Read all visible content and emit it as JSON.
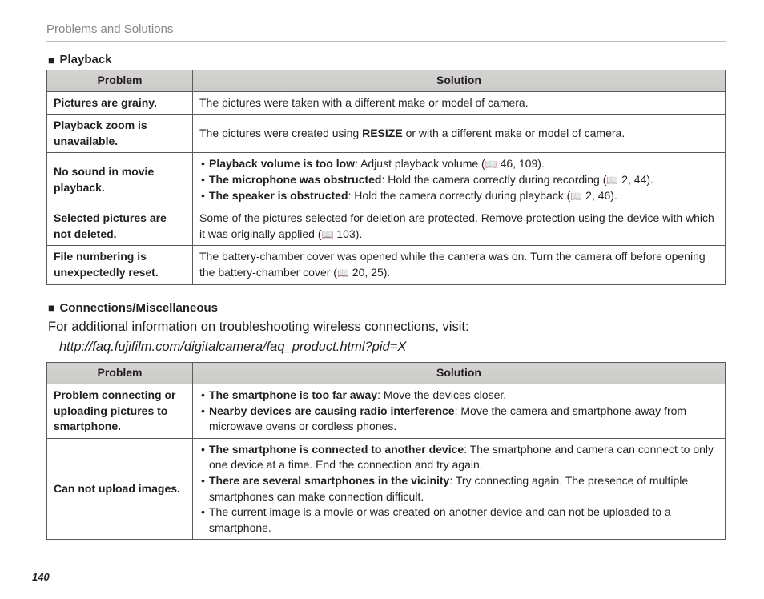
{
  "header": "Problems and Solutions",
  "page_number": "140",
  "book_glyph": "📖",
  "sections": [
    {
      "marker": "■",
      "title": "Playback",
      "col_problem": "Problem",
      "col_solution": "Solution",
      "rows": [
        {
          "problem": "Pictures are grainy.",
          "solution_html": "The pictures were taken with a different make or model of camera."
        },
        {
          "problem": "Playback zoom is unavailable.",
          "solution_html": "The pictures were created using <span class='b'>RESIZE</span> or with a different make or model of camera."
        },
        {
          "problem": "No sound in movie playback.",
          "solution_html": "<ul class='bullets'><li><span class='b'>Playback volume is too low</span>: Adjust playback volume (<span class='book'>📖</span> 46, 109).</li><li><span class='b'>The microphone was obstructed</span>: Hold the camera correctly during recording (<span class='book'>📖</span> 2, 44).</li><li><span class='b'>The speaker is obstructed</span>: Hold the camera correctly during playback (<span class='book'>📖</span> 2, 46).</li></ul>"
        },
        {
          "problem": "Selected pictures are not deleted.",
          "solution_html": "Some of the pictures selected for deletion are protected.  Remove protection using the device with which it was originally applied (<span class='book'>📖</span> 103)."
        },
        {
          "problem": "File numbering is unexpectedly reset.",
          "solution_html": "The battery-chamber cover was opened while the camera was on.  Turn the camera off before opening the battery-chamber cover (<span class='book'>📖</span> 20, 25)."
        }
      ]
    },
    {
      "marker": "■",
      "title": "Connections/Miscellaneous",
      "intro_line": "For additional information on troubleshooting wireless connections, visit:",
      "intro_url": "http://faq.fujifilm.com/digitalcamera/faq_product.html?pid=X",
      "col_problem": "Problem",
      "col_solution": "Solution",
      "rows": [
        {
          "problem": "Problem connecting or uploading pictures to smartphone.",
          "solution_html": "<ul class='bullets'><li><span class='b'>The smartphone is too far away</span>: Move the devices closer.</li><li><span class='b'>Nearby devices are causing radio interference</span>: Move the camera and smartphone away from microwave ovens or cordless phones.</li></ul>"
        },
        {
          "problem": "Can not upload images.",
          "solution_html": "<ul class='bullets'><li><span class='b'>The smartphone is connected to another device</span>: The smartphone and camera can connect to only one device at a time.  End the connection and try again.</li><li><span class='b'>There are several smartphones in the vicinity</span>: Try connecting again. The presence of multiple smartphones can make connection difficult.</li><li>The current image is a movie or was created on another device and can not be uploaded to a smartphone.</li></ul>"
        }
      ]
    }
  ]
}
